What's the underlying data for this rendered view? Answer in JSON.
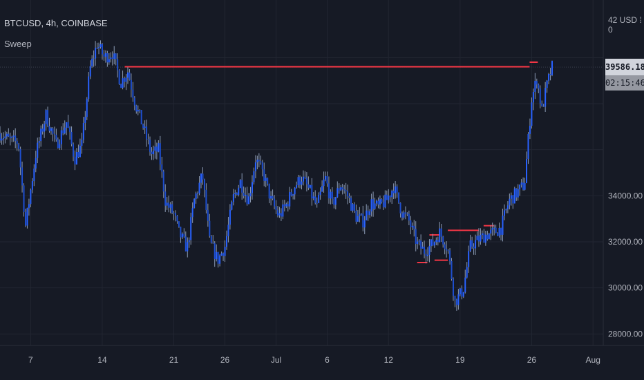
{
  "legend": {
    "symbol": "BTCUSD, 4h, COINBASE",
    "indicator": "Sweep"
  },
  "price_axis": {
    "currency_label": "42 USD ⁞0",
    "current_price": "39586.18",
    "countdown": "02:15:46"
  },
  "colors": {
    "background": "#161a25",
    "candle": "#2962ff",
    "wick": "#8c9bb5",
    "sweep_line": "#f23645",
    "grid": "#222632"
  },
  "chart_data": {
    "type": "line",
    "title": "BTCUSD, 4h, COINBASE",
    "xlabel": "",
    "ylabel": "",
    "ylim": [
      27500,
      42500
    ],
    "y_ticks": [
      28000,
      30000,
      32000,
      34000
    ],
    "x_tick_labels": [
      "7",
      "14",
      "21",
      "26",
      "Jul",
      "6",
      "12",
      "19",
      "26",
      "Aug"
    ],
    "x_tick_days": [
      7,
      14,
      21,
      26,
      31,
      36,
      42,
      49,
      56,
      62
    ],
    "current_price": 39586.18,
    "price_series": {
      "day": [
        4.0,
        5.0,
        5.8,
        6.5,
        7.5,
        8.5,
        9.5,
        10.5,
        11.3,
        12.0,
        12.8,
        13.5,
        14.2,
        15.0,
        15.8,
        16.5,
        17.3,
        18.0,
        18.8,
        19.5,
        20.2,
        21.0,
        21.5,
        22.3,
        23.0,
        23.8,
        24.5,
        25.3,
        26.0,
        26.8,
        27.5,
        28.3,
        29.0,
        29.8,
        30.5,
        31.3,
        32.0,
        32.8,
        33.5,
        34.3,
        35.0,
        35.8,
        36.5,
        37.3,
        38.0,
        38.8,
        39.5,
        40.3,
        41.0,
        41.8,
        42.5,
        43.3,
        44.0,
        44.8,
        45.5,
        46.3,
        47.0,
        47.8,
        48.5,
        49.3,
        50.0,
        50.8,
        51.5,
        52.3,
        53.0,
        53.8,
        54.5,
        55.3,
        56.0,
        56.5,
        57.0,
        57.5,
        58.0
      ],
      "close": [
        36700,
        36400,
        36300,
        32700,
        35800,
        37500,
        36200,
        37200,
        35600,
        36200,
        39500,
        40600,
        40000,
        40200,
        38900,
        39400,
        37900,
        37000,
        35800,
        36000,
        33700,
        33200,
        32400,
        31700,
        33800,
        34900,
        32000,
        31200,
        31800,
        33900,
        34600,
        33800,
        35600,
        34900,
        33800,
        33100,
        33600,
        34400,
        34800,
        34200,
        33500,
        34800,
        33600,
        34500,
        34000,
        33100,
        32900,
        33700,
        33500,
        33800,
        34400,
        33300,
        32900,
        31900,
        31600,
        31900,
        32400,
        31700,
        29400,
        29900,
        31800,
        32100,
        32300,
        32400,
        32600,
        33800,
        34100,
        34500,
        38200,
        39100,
        37700,
        38800,
        39586
      ]
    },
    "sweep_levels": [
      {
        "start_day": 16.2,
        "end_day": 55.8,
        "price": 39600
      },
      {
        "start_day": 55.8,
        "end_day": 56.6,
        "price": 39800
      },
      {
        "start_day": 44.8,
        "end_day": 45.8,
        "price": 31100
      },
      {
        "start_day": 46.0,
        "end_day": 47.0,
        "price": 32300
      },
      {
        "start_day": 46.5,
        "end_day": 47.8,
        "price": 31200
      },
      {
        "start_day": 47.8,
        "end_day": 50.8,
        "price": 32500
      },
      {
        "start_day": 51.3,
        "end_day": 52.3,
        "price": 32700
      }
    ]
  }
}
